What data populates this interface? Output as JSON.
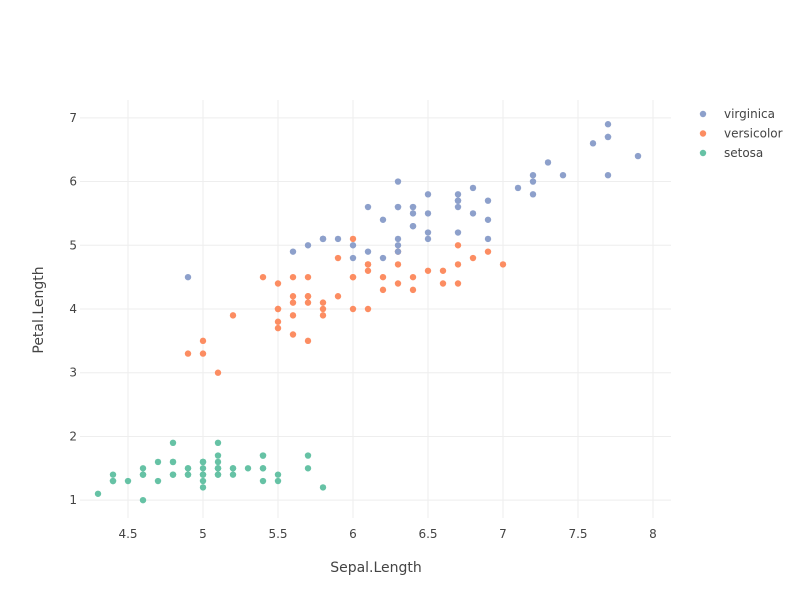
{
  "chart_data": {
    "type": "scatter",
    "xlabel": "Sepal.Length",
    "ylabel": "Petal.Length",
    "xlim": [
      4.18,
      8.12
    ],
    "ylim": [
      0.72,
      7.28
    ],
    "xticks": [
      4.5,
      5,
      5.5,
      6,
      6.5,
      7,
      7.5,
      8
    ],
    "xtick_labels": [
      "4.5",
      "5",
      "5.5",
      "6",
      "6.5",
      "7",
      "7.5",
      "8"
    ],
    "yticks": [
      1,
      2,
      3,
      4,
      5,
      6,
      7
    ],
    "ytick_labels": [
      "1",
      "2",
      "3",
      "4",
      "5",
      "6",
      "7"
    ],
    "grid": true,
    "legend_position": "top-right",
    "series": [
      {
        "name": "virginica",
        "color": "#8da0cb",
        "x": [
          6.3,
          5.8,
          7.1,
          6.3,
          6.5,
          7.6,
          4.9,
          7.3,
          6.7,
          7.2,
          6.5,
          6.4,
          6.8,
          5.7,
          5.8,
          6.4,
          6.5,
          7.7,
          7.7,
          6.0,
          6.9,
          5.6,
          7.7,
          6.3,
          6.7,
          7.2,
          6.2,
          6.1,
          6.4,
          7.2,
          7.4,
          7.9,
          6.4,
          6.3,
          6.1,
          7.7,
          6.3,
          6.4,
          6.0,
          6.9,
          6.7,
          6.9,
          5.8,
          6.8,
          6.7,
          6.7,
          6.3,
          6.5,
          6.2,
          5.9
        ],
        "y": [
          6.0,
          5.1,
          5.9,
          5.6,
          5.8,
          6.6,
          4.5,
          6.3,
          5.8,
          6.1,
          5.1,
          5.3,
          5.5,
          5.0,
          5.1,
          5.3,
          5.5,
          6.7,
          6.9,
          5.0,
          5.7,
          4.9,
          6.7,
          4.9,
          5.7,
          6.0,
          4.8,
          4.9,
          5.6,
          5.8,
          6.1,
          6.4,
          5.6,
          5.1,
          5.6,
          6.1,
          5.6,
          5.5,
          4.8,
          5.4,
          5.6,
          5.1,
          5.1,
          5.9,
          5.7,
          5.2,
          5.0,
          5.2,
          5.4,
          5.1
        ]
      },
      {
        "name": "versicolor",
        "color": "#fc8d62",
        "x": [
          7.0,
          6.4,
          6.9,
          5.5,
          6.5,
          5.7,
          6.3,
          4.9,
          6.6,
          5.2,
          5.0,
          5.9,
          6.0,
          6.1,
          5.6,
          6.7,
          5.6,
          5.8,
          6.2,
          5.6,
          5.9,
          6.1,
          6.3,
          6.1,
          6.4,
          6.6,
          6.8,
          6.7,
          6.0,
          5.7,
          5.5,
          5.5,
          5.8,
          6.0,
          5.4,
          6.0,
          6.7,
          6.3,
          5.6,
          5.5,
          5.5,
          6.1,
          5.8,
          5.0,
          5.6,
          5.7,
          5.7,
          6.2,
          5.1,
          5.7
        ],
        "y": [
          4.7,
          4.5,
          4.9,
          4.0,
          4.6,
          4.5,
          4.7,
          3.3,
          4.6,
          3.9,
          3.5,
          4.2,
          4.0,
          4.7,
          3.6,
          4.4,
          4.5,
          4.1,
          4.5,
          3.9,
          4.8,
          4.0,
          4.9,
          4.7,
          4.3,
          4.4,
          4.8,
          5.0,
          4.5,
          3.5,
          3.8,
          3.7,
          3.9,
          5.1,
          4.5,
          4.5,
          4.7,
          4.4,
          4.1,
          4.0,
          4.4,
          4.6,
          4.0,
          3.3,
          4.2,
          4.2,
          4.2,
          4.3,
          3.0,
          4.1
        ]
      },
      {
        "name": "setosa",
        "color": "#66c2a5",
        "x": [
          5.1,
          4.9,
          4.7,
          4.6,
          5.0,
          5.4,
          4.6,
          5.0,
          4.4,
          4.9,
          5.4,
          4.8,
          4.8,
          4.3,
          5.8,
          5.7,
          5.4,
          5.1,
          5.7,
          5.1,
          5.4,
          5.1,
          4.6,
          5.1,
          4.8,
          5.0,
          5.0,
          5.2,
          5.2,
          4.7,
          4.8,
          5.4,
          5.2,
          5.5,
          4.9,
          5.0,
          5.5,
          4.9,
          4.4,
          5.1,
          5.0,
          4.5,
          4.4,
          5.0,
          5.1,
          4.8,
          5.1,
          4.6,
          5.3,
          5.0
        ],
        "y": [
          1.4,
          1.4,
          1.3,
          1.5,
          1.4,
          1.7,
          1.4,
          1.5,
          1.4,
          1.5,
          1.5,
          1.6,
          1.4,
          1.1,
          1.2,
          1.5,
          1.3,
          1.4,
          1.7,
          1.5,
          1.7,
          1.5,
          1.0,
          1.7,
          1.9,
          1.6,
          1.6,
          1.5,
          1.4,
          1.6,
          1.6,
          1.5,
          1.5,
          1.4,
          1.5,
          1.2,
          1.3,
          1.4,
          1.3,
          1.5,
          1.3,
          1.3,
          1.3,
          1.6,
          1.9,
          1.4,
          1.6,
          1.4,
          1.5,
          1.4
        ]
      }
    ]
  }
}
